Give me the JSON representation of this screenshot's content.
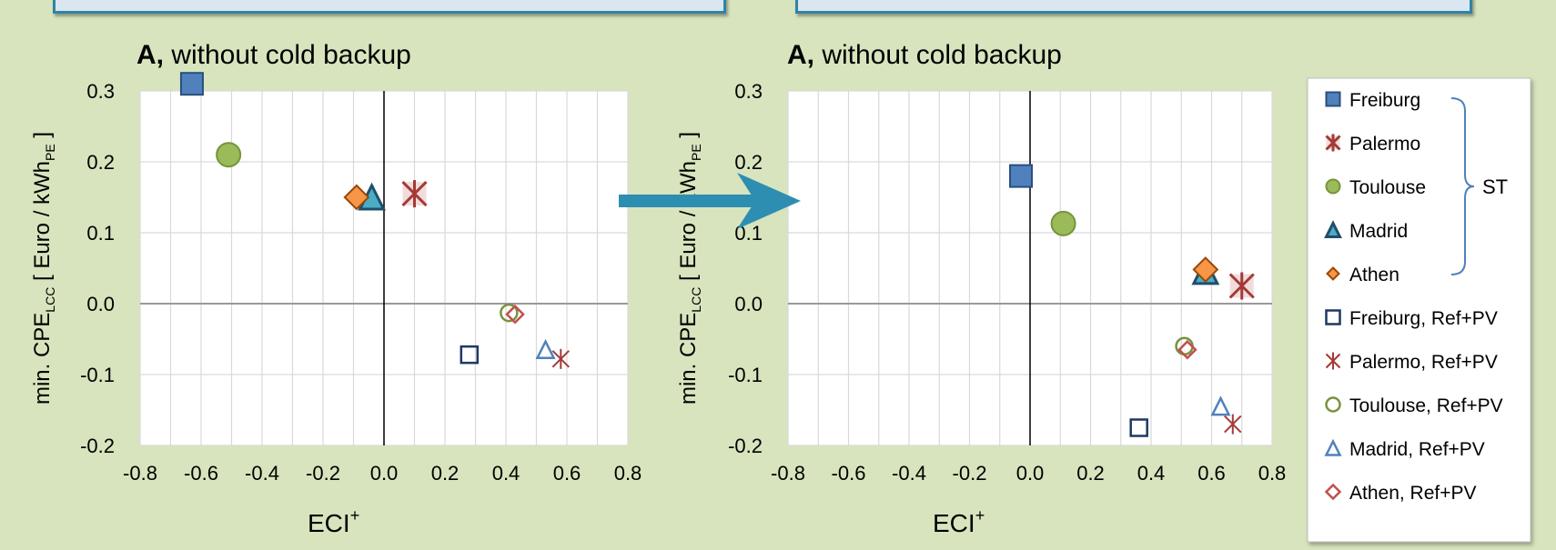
{
  "charts": [
    {
      "title_bold": "A,",
      "title_rest": " without cold backup"
    },
    {
      "title_bold": "A,",
      "title_rest": " without cold backup"
    }
  ],
  "axes": {
    "xlabel_main": "ECI",
    "xlabel_sup": "+",
    "ylabel_part1": "min. CPE",
    "ylabel_sub": "LCC",
    "ylabel_part2": " [ Euro / kWh",
    "ylabel_sub2": "PE",
    "ylabel_part3": " ]"
  },
  "legend": {
    "group_label": "ST",
    "entries": [
      {
        "name": "Freiburg",
        "marker": "square",
        "fill": "#4f81bd",
        "stroke": "#2a4f7a"
      },
      {
        "name": "Palermo",
        "marker": "star",
        "fill": "#c0504d",
        "stroke": "#a33a37"
      },
      {
        "name": "Toulouse",
        "marker": "circle",
        "fill": "#9bbb59",
        "stroke": "#77933c"
      },
      {
        "name": "Madrid",
        "marker": "triangle",
        "fill": "#4bacc6",
        "stroke": "#1f4e6a"
      },
      {
        "name": "Athen",
        "marker": "diamond",
        "fill": "#f79646",
        "stroke": "#984807"
      },
      {
        "name": "Freiburg, Ref+PV",
        "marker": "square-open",
        "fill": "none",
        "stroke": "#1f3864"
      },
      {
        "name": "Palermo, Ref+PV",
        "marker": "x-open",
        "fill": "none",
        "stroke": "#a33a37"
      },
      {
        "name": "Toulouse, Ref+PV",
        "marker": "circle-open",
        "fill": "none",
        "stroke": "#77933c"
      },
      {
        "name": "Madrid, Ref+PV",
        "marker": "triangle-open",
        "fill": "none",
        "stroke": "#4f81bd"
      },
      {
        "name": "Athen, Ref+PV",
        "marker": "diamond-open",
        "fill": "none",
        "stroke": "#c0504d"
      }
    ]
  },
  "colors": {
    "arrow": "#2d8eb2",
    "grid": "#d9d9d9",
    "zero_x": "#000000",
    "zero_y": "#999999"
  },
  "chart_data": [
    {
      "type": "scatter",
      "title": "A, without cold backup",
      "xlabel": "ECI+",
      "ylabel": "min. CPE_LCC [ Euro / kWh_PE ]",
      "xlim": [
        -0.8,
        0.8
      ],
      "ylim": [
        -0.2,
        0.3
      ],
      "xticks": [
        "-0.8",
        "-0.6",
        "-0.4",
        "-0.2",
        "0.0",
        "0.2",
        "0.4",
        "0.6",
        "0.8"
      ],
      "yticks": [
        "0.3",
        "0.2",
        "0.1",
        "0.0",
        "-0.1",
        "-0.2"
      ],
      "grid": true,
      "legend": "right",
      "series": [
        {
          "name": "Freiburg",
          "x": -0.63,
          "y": 0.31
        },
        {
          "name": "Palermo",
          "x": 0.1,
          "y": 0.155
        },
        {
          "name": "Toulouse",
          "x": -0.51,
          "y": 0.21
        },
        {
          "name": "Madrid",
          "x": -0.04,
          "y": 0.15
        },
        {
          "name": "Athen",
          "x": -0.09,
          "y": 0.15
        },
        {
          "name": "Freiburg, Ref+PV",
          "x": 0.28,
          "y": -0.072
        },
        {
          "name": "Palermo, Ref+PV",
          "x": 0.58,
          "y": -0.078
        },
        {
          "name": "Toulouse, Ref+PV",
          "x": 0.41,
          "y": -0.013
        },
        {
          "name": "Madrid, Ref+PV",
          "x": 0.53,
          "y": -0.065
        },
        {
          "name": "Athen, Ref+PV",
          "x": 0.43,
          "y": -0.015
        }
      ]
    },
    {
      "type": "scatter",
      "title": "A, without cold backup",
      "xlabel": "ECI+",
      "ylabel": "min. CPE_LCC [ Euro / kWh_PE ]",
      "xlim": [
        -0.8,
        0.8
      ],
      "ylim": [
        -0.2,
        0.3
      ],
      "xticks": [
        "-0.8",
        "-0.6",
        "-0.4",
        "-0.2",
        "0.0",
        "0.2",
        "0.4",
        "0.6",
        "0.8"
      ],
      "yticks": [
        "0.3",
        "0.2",
        "0.1",
        "0.0",
        "-0.1",
        "-0.2"
      ],
      "grid": true,
      "legend": "right",
      "series": [
        {
          "name": "Freiburg",
          "x": -0.03,
          "y": 0.18
        },
        {
          "name": "Palermo",
          "x": 0.7,
          "y": 0.025
        },
        {
          "name": "Toulouse",
          "x": 0.11,
          "y": 0.113
        },
        {
          "name": "Madrid",
          "x": 0.58,
          "y": 0.045
        },
        {
          "name": "Athen",
          "x": 0.58,
          "y": 0.048
        },
        {
          "name": "Freiburg, Ref+PV",
          "x": 0.36,
          "y": -0.175
        },
        {
          "name": "Palermo, Ref+PV",
          "x": 0.67,
          "y": -0.17
        },
        {
          "name": "Toulouse, Ref+PV",
          "x": 0.51,
          "y": -0.06
        },
        {
          "name": "Madrid, Ref+PV",
          "x": 0.63,
          "y": -0.145
        },
        {
          "name": "Athen, Ref+PV",
          "x": 0.52,
          "y": -0.065
        }
      ]
    }
  ]
}
